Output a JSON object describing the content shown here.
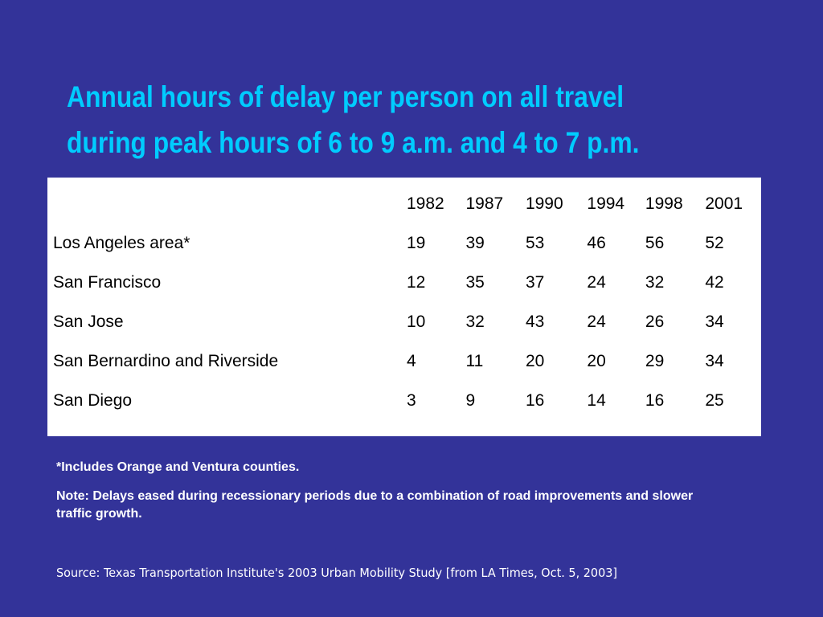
{
  "slide": {
    "title_lines": [
      "Annual hours of delay per person on all travel",
      "during peak hours of 6 to 9 a.m. and 4 to 7 p.m."
    ],
    "footnote": "*Includes Orange and Ventura counties.",
    "note": "Note: Delays eased during recessionary periods due to a combination of road improvements and slower traffic growth.",
    "source": "Source: Texas Transportation Institute's 2003 Urban Mobility Study [from LA Times, Oct. 5, 2003]",
    "colors": {
      "background": "#333399",
      "title": "#00ccff",
      "table_bg": "#ffffff",
      "text": "#ffffff"
    }
  },
  "table": {
    "years": [
      "1982",
      "1987",
      "1990",
      "1994",
      "1998",
      "2001"
    ],
    "rows": [
      {
        "city": "Los Angeles area*",
        "values": [
          "19",
          "39",
          "53",
          "46",
          "56",
          "52"
        ]
      },
      {
        "city": "San Francisco",
        "values": [
          "12",
          "35",
          "37",
          "24",
          "32",
          "42"
        ]
      },
      {
        "city": "San Jose",
        "values": [
          "10",
          "32",
          "43",
          "24",
          "26",
          "34"
        ]
      },
      {
        "city": "San Bernardino and Riverside",
        "values": [
          "4",
          "11",
          "20",
          "20",
          "29",
          "34"
        ]
      },
      {
        "city": "San Diego",
        "values": [
          "3",
          "9",
          "16",
          "14",
          "16",
          "25"
        ]
      }
    ]
  }
}
